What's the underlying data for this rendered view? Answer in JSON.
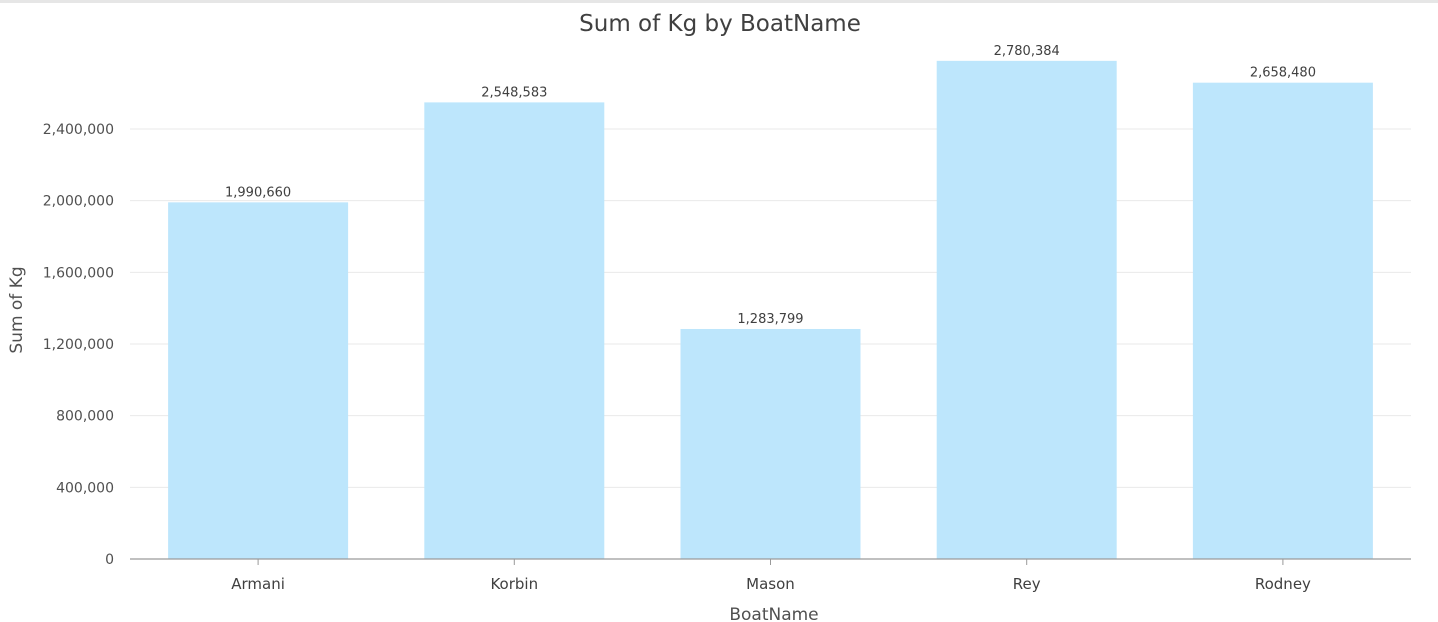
{
  "chart_data": {
    "type": "bar",
    "title": "Sum of Kg by BoatName",
    "xlabel": "BoatName",
    "ylabel": "Sum of Kg",
    "categories": [
      "Armani",
      "Korbin",
      "Mason",
      "Rey",
      "Rodney"
    ],
    "values": [
      1990660,
      2548583,
      1283799,
      2780384,
      2658480
    ],
    "data_labels": [
      "1,990,660",
      "2,548,583",
      "1,283,799",
      "2,780,384",
      "2,658,480"
    ],
    "yticks": [
      0,
      400000,
      800000,
      1200000,
      1600000,
      2000000,
      2400000
    ],
    "ytick_labels": [
      "0",
      "400,000",
      "800,000",
      "1,200,000",
      "1,600,000",
      "2,000,000",
      "2,400,000"
    ],
    "ylim": [
      0,
      2800000
    ],
    "grid": true,
    "bar_color": "#bde6fc"
  }
}
